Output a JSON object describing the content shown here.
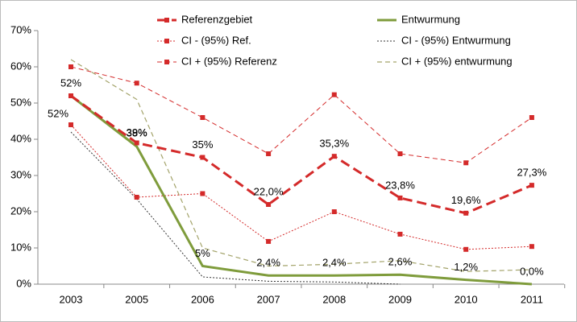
{
  "chart_data": {
    "type": "line",
    "categories": [
      "2003",
      "2005",
      "2006",
      "2007",
      "2008",
      "2009",
      "2010",
      "2011"
    ],
    "ylim": [
      0,
      70
    ],
    "yticks": [
      {
        "value": 0,
        "label": "0%"
      },
      {
        "value": 10,
        "label": "10%"
      },
      {
        "value": 20,
        "label": "20%"
      },
      {
        "value": 30,
        "label": "30%"
      },
      {
        "value": 40,
        "label": "40%"
      },
      {
        "value": 50,
        "label": "50%"
      },
      {
        "value": 60,
        "label": "60%"
      },
      {
        "value": 70,
        "label": "70%"
      }
    ],
    "series": [
      {
        "name": "Referenzgebiet",
        "color": "#d42a2a",
        "line_style": "dashed",
        "line_width": 3,
        "marker": "square",
        "values": [
          52,
          39,
          35,
          22.0,
          35.3,
          23.8,
          19.6,
          27.3
        ],
        "value_labels": [
          "52%",
          "39%",
          "35%",
          "22,0%",
          "35,3%",
          "23,8%",
          "19,6%",
          "27,3%"
        ]
      },
      {
        "name": "Entwurmung",
        "color": "#7f9c3c",
        "line_style": "solid",
        "line_width": 3,
        "marker": "none",
        "values": [
          52,
          38,
          5,
          2.4,
          2.4,
          2.6,
          1.2,
          0.0
        ],
        "value_labels": [
          "52%",
          "38%",
          "5%",
          "2,4%",
          "2,4%",
          "2,6%",
          "1,2%",
          "0,0%"
        ]
      },
      {
        "name": "CI - (95%) Ref.",
        "color": "#d42a2a",
        "line_style": "dotted",
        "line_width": 1,
        "marker": "square",
        "values": [
          44,
          24,
          25,
          11.8,
          20,
          13.8,
          9.6,
          10.4
        ]
      },
      {
        "name": "CI - (95%) Entwurmung",
        "color": "#333333",
        "line_style": "dotted",
        "line_width": 1,
        "marker": "none",
        "values": [
          42,
          23.5,
          2,
          0.8,
          0.6,
          0,
          null,
          null
        ]
      },
      {
        "name": "CI + (95%) Referenz",
        "color": "#d42a2a",
        "line_style": "dashed",
        "line_width": 1,
        "marker": "square",
        "values": [
          60,
          55.5,
          46,
          36,
          52.3,
          36,
          33.5,
          46
        ]
      },
      {
        "name": "CI + (95%) entwurmung",
        "color": "#a3a36a",
        "line_style": "dashed",
        "line_width": 1.2,
        "marker": "none",
        "values": [
          62,
          51,
          10,
          5,
          5.5,
          6.5,
          3.5,
          4
        ]
      }
    ]
  }
}
